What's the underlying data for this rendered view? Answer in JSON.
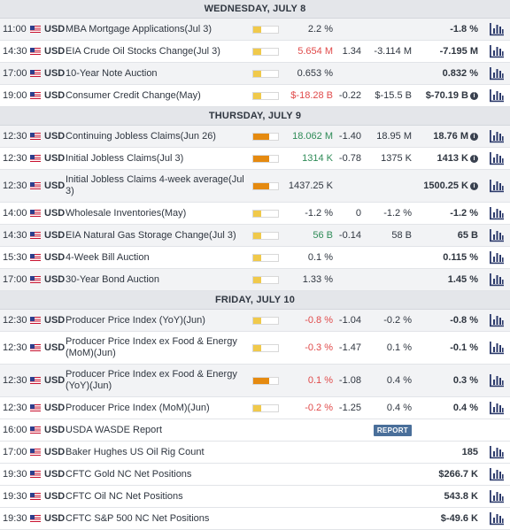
{
  "days": [
    {
      "date": "WEDNESDAY, JULY 8",
      "events": [
        {
          "time": "11:00",
          "currency": "USD",
          "event": "MBA Mortgage Applications(Jul 3)",
          "impact": "low",
          "actual": "2.2 %",
          "actual_color": "neutral",
          "deviation": "",
          "consensus": "",
          "previous": "-1.8 %",
          "previous_info": false,
          "bg": "grey",
          "tall": false
        },
        {
          "time": "14:30",
          "currency": "USD",
          "event": "EIA Crude Oil Stocks Change(Jul 3)",
          "impact": "low",
          "actual": "5.654 M",
          "actual_color": "neg",
          "deviation": "1.34",
          "consensus": "-3.114 M",
          "previous": "-7.195 M",
          "previous_info": false,
          "bg": "white",
          "tall": false
        },
        {
          "time": "17:00",
          "currency": "USD",
          "event": "10-Year Note Auction",
          "impact": "low",
          "actual": "0.653 %",
          "actual_color": "neutral",
          "deviation": "",
          "consensus": "",
          "previous": "0.832 %",
          "previous_info": false,
          "bg": "grey",
          "tall": false
        },
        {
          "time": "19:00",
          "currency": "USD",
          "event": "Consumer Credit Change(May)",
          "impact": "low",
          "actual": "$-18.28 B",
          "actual_color": "neg",
          "deviation": "-0.22",
          "consensus": "$-15.5 B",
          "previous": "$-70.19 B",
          "previous_info": true,
          "bg": "white",
          "tall": false
        }
      ]
    },
    {
      "date": "THURSDAY, JULY 9",
      "events": [
        {
          "time": "12:30",
          "currency": "USD",
          "event": "Continuing Jobless Claims(Jun 26)",
          "impact": "high",
          "actual": "18.062 M",
          "actual_color": "pos",
          "deviation": "-1.40",
          "consensus": "18.95 M",
          "previous": "18.76 M",
          "previous_info": true,
          "bg": "grey",
          "tall": false
        },
        {
          "time": "12:30",
          "currency": "USD",
          "event": "Initial Jobless Claims(Jul 3)",
          "impact": "high",
          "actual": "1314 K",
          "actual_color": "pos",
          "deviation": "-0.78",
          "consensus": "1375 K",
          "previous": "1413 K",
          "previous_info": true,
          "bg": "white",
          "tall": false
        },
        {
          "time": "12:30",
          "currency": "USD",
          "event": "Initial Jobless Claims 4-week average(Jul 3)",
          "impact": "high",
          "actual": "1437.25 K",
          "actual_color": "neutral",
          "deviation": "",
          "consensus": "",
          "previous": "1500.25 K",
          "previous_info": true,
          "bg": "grey",
          "tall": true
        },
        {
          "time": "14:00",
          "currency": "USD",
          "event": "Wholesale Inventories(May)",
          "impact": "low",
          "actual": "-1.2 %",
          "actual_color": "neutral",
          "deviation": "0",
          "consensus": "-1.2 %",
          "previous": "-1.2 %",
          "previous_info": false,
          "bg": "white",
          "tall": false
        },
        {
          "time": "14:30",
          "currency": "USD",
          "event": "EIA Natural Gas Storage Change(Jul 3)",
          "impact": "low",
          "actual": "56 B",
          "actual_color": "pos",
          "deviation": "-0.14",
          "consensus": "58 B",
          "previous": "65 B",
          "previous_info": false,
          "bg": "grey",
          "tall": false
        },
        {
          "time": "15:30",
          "currency": "USD",
          "event": "4-Week Bill Auction",
          "impact": "low",
          "actual": "0.1 %",
          "actual_color": "neutral",
          "deviation": "",
          "consensus": "",
          "previous": "0.115 %",
          "previous_info": false,
          "bg": "white",
          "tall": false
        },
        {
          "time": "17:00",
          "currency": "USD",
          "event": "30-Year Bond Auction",
          "impact": "low",
          "actual": "1.33 %",
          "actual_color": "neutral",
          "deviation": "",
          "consensus": "",
          "previous": "1.45 %",
          "previous_info": false,
          "bg": "grey",
          "tall": false
        }
      ]
    },
    {
      "date": "FRIDAY, JULY 10",
      "events": [
        {
          "time": "12:30",
          "currency": "USD",
          "event": "Producer Price Index (YoY)(Jun)",
          "impact": "low",
          "actual": "-0.8 %",
          "actual_color": "neg",
          "deviation": "-1.04",
          "consensus": "-0.2 %",
          "previous": "-0.8 %",
          "previous_info": false,
          "bg": "grey",
          "tall": false
        },
        {
          "time": "12:30",
          "currency": "USD",
          "event": "Producer Price Index ex Food & Energy (MoM)(Jun)",
          "impact": "low",
          "actual": "-0.3 %",
          "actual_color": "neg",
          "deviation": "-1.47",
          "consensus": "0.1 %",
          "previous": "-0.1 %",
          "previous_info": false,
          "bg": "white",
          "tall": true
        },
        {
          "time": "12:30",
          "currency": "USD",
          "event": "Producer Price Index ex Food & Energy (YoY)(Jun)",
          "impact": "high",
          "actual": "0.1 %",
          "actual_color": "neg",
          "deviation": "-1.08",
          "consensus": "0.4 %",
          "previous": "0.3 %",
          "previous_info": false,
          "bg": "grey",
          "tall": true
        },
        {
          "time": "12:30",
          "currency": "USD",
          "event": "Producer Price Index (MoM)(Jun)",
          "impact": "low",
          "actual": "-0.2 %",
          "actual_color": "neg",
          "deviation": "-1.25",
          "consensus": "0.4 %",
          "previous": "0.4 %",
          "previous_info": false,
          "bg": "white",
          "tall": false
        },
        {
          "time": "16:00",
          "currency": "USD",
          "event": "USDA WASDE Report",
          "impact": "none",
          "actual": "",
          "actual_color": "neutral",
          "deviation": "",
          "consensus": "REPORT",
          "consensus_badge": true,
          "previous": "",
          "previous_info": false,
          "bg": "white",
          "tall": false,
          "no_chart": true
        },
        {
          "time": "17:00",
          "currency": "USD",
          "event": "Baker Hughes US Oil Rig Count",
          "impact": "none",
          "actual": "",
          "actual_color": "neutral",
          "deviation": "",
          "consensus": "",
          "previous": "185",
          "previous_info": false,
          "bg": "white",
          "tall": false
        },
        {
          "time": "19:30",
          "currency": "USD",
          "event": "CFTC Gold NC Net Positions",
          "impact": "none",
          "actual": "",
          "actual_color": "neutral",
          "deviation": "",
          "consensus": "",
          "previous": "$266.7 K",
          "previous_info": false,
          "bg": "white",
          "tall": false
        },
        {
          "time": "19:30",
          "currency": "USD",
          "event": "CFTC Oil NC Net Positions",
          "impact": "none",
          "actual": "",
          "actual_color": "neutral",
          "deviation": "",
          "consensus": "",
          "previous": "543.8 K",
          "previous_info": false,
          "bg": "white",
          "tall": false
        },
        {
          "time": "19:30",
          "currency": "USD",
          "event": "CFTC S&P 500 NC Net Positions",
          "impact": "none",
          "actual": "",
          "actual_color": "neutral",
          "deviation": "",
          "consensus": "",
          "previous": "$-49.6 K",
          "previous_info": false,
          "bg": "white",
          "tall": false
        }
      ]
    }
  ],
  "icons": {
    "flag": "us-flag-icon",
    "chart": "bar-chart-icon",
    "info": "info-icon"
  },
  "colors": {
    "impact_low": "#f0c94b",
    "impact_high": "#e58a10",
    "positive": "#2e8b57",
    "negative": "#e04a4a",
    "report_badge": "#4a6f9a"
  }
}
